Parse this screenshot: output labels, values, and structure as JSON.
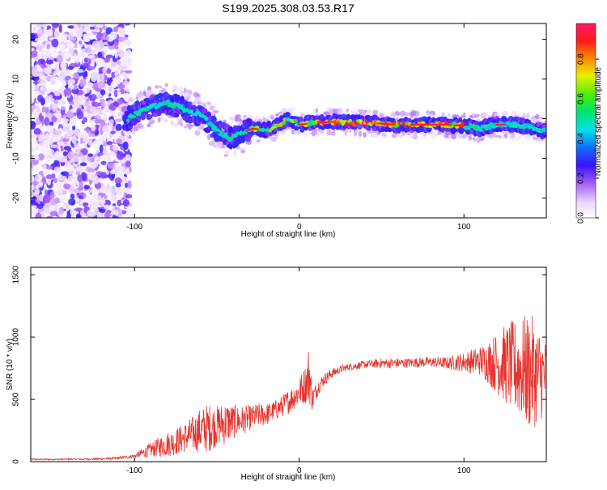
{
  "chart_data": [
    {
      "type": "heatmap",
      "title": "S199.2025.308.03.53.R17",
      "xlabel": "Height of straight line (km)",
      "ylabel": "Frequency (Hz)",
      "xlim": [
        -163,
        150
      ],
      "ylim": [
        -25,
        24
      ],
      "xticks": [
        "-100",
        "0",
        "100"
      ],
      "yticks": [
        "-20",
        "-10",
        "0",
        "10",
        "20"
      ],
      "colorbar": {
        "label": "Normalized spectral amplitude",
        "range": [
          0,
          0.98
        ],
        "ticks": [
          "0.0",
          "0.2",
          "0.4",
          "0.6",
          "0.8"
        ]
      },
      "ridge": {
        "x": [
          -110,
          -100,
          -90,
          -80,
          -70,
          -60,
          -50,
          -42,
          -35,
          -28,
          -20,
          -12,
          -6,
          0,
          10,
          20,
          40,
          60,
          80,
          90,
          100,
          110,
          120,
          130,
          140,
          148
        ],
        "y": [
          -1.5,
          1,
          3,
          4,
          2.5,
          1,
          -3,
          -5,
          -3.5,
          -2.5,
          -3,
          -1.5,
          0,
          -1.5,
          -1,
          -0.8,
          -1,
          -1.5,
          -1.5,
          -1.5,
          -1.8,
          -2.5,
          -1.5,
          -1.5,
          -2,
          -3
        ]
      }
    },
    {
      "type": "line",
      "xlabel": "Height of straight line (km)",
      "ylabel": "SNR (10 * v/v)",
      "xlim": [
        -163,
        150
      ],
      "ylim": [
        0,
        1560
      ],
      "xticks": [
        "-100",
        "0",
        "100"
      ],
      "yticks": [
        "0",
        "500",
        "1000",
        "1500"
      ],
      "color": "#e8332e",
      "series": [
        {
          "name": "SNR",
          "x": [
            -163,
            -150,
            -140,
            -130,
            -120,
            -110,
            -100,
            -95,
            -90,
            -85,
            -80,
            -75,
            -70,
            -65,
            -60,
            -55,
            -50,
            -45,
            -40,
            -35,
            -30,
            -25,
            -20,
            -15,
            -10,
            -5,
            0,
            3,
            5,
            6,
            7,
            8,
            10,
            12,
            15,
            20,
            25,
            30,
            40,
            50,
            60,
            70,
            80,
            90,
            100,
            110,
            115,
            120,
            125,
            130,
            135,
            140,
            145,
            150
          ],
          "mean": [
            18,
            18,
            20,
            20,
            22,
            28,
            45,
            70,
            95,
            120,
            140,
            160,
            190,
            220,
            250,
            270,
            290,
            310,
            320,
            330,
            350,
            370,
            380,
            410,
            450,
            500,
            560,
            610,
            650,
            720,
            600,
            500,
            560,
            610,
            660,
            710,
            740,
            760,
            780,
            790,
            790,
            795,
            800,
            790,
            800,
            810,
            800,
            790,
            780,
            760,
            740,
            720,
            700,
            680
          ],
          "amp": [
            6,
            6,
            6,
            6,
            8,
            10,
            15,
            40,
            60,
            80,
            100,
            110,
            120,
            140,
            180,
            200,
            160,
            180,
            140,
            120,
            100,
            100,
            90,
            80,
            90,
            100,
            120,
            150,
            180,
            280,
            150,
            100,
            70,
            60,
            50,
            40,
            30,
            30,
            30,
            40,
            40,
            40,
            40,
            50,
            80,
            120,
            180,
            250,
            320,
            380,
            420,
            480,
            400,
            300
          ]
        }
      ]
    }
  ],
  "colors": {
    "line": "#e8332e",
    "background": "#ffffff"
  }
}
